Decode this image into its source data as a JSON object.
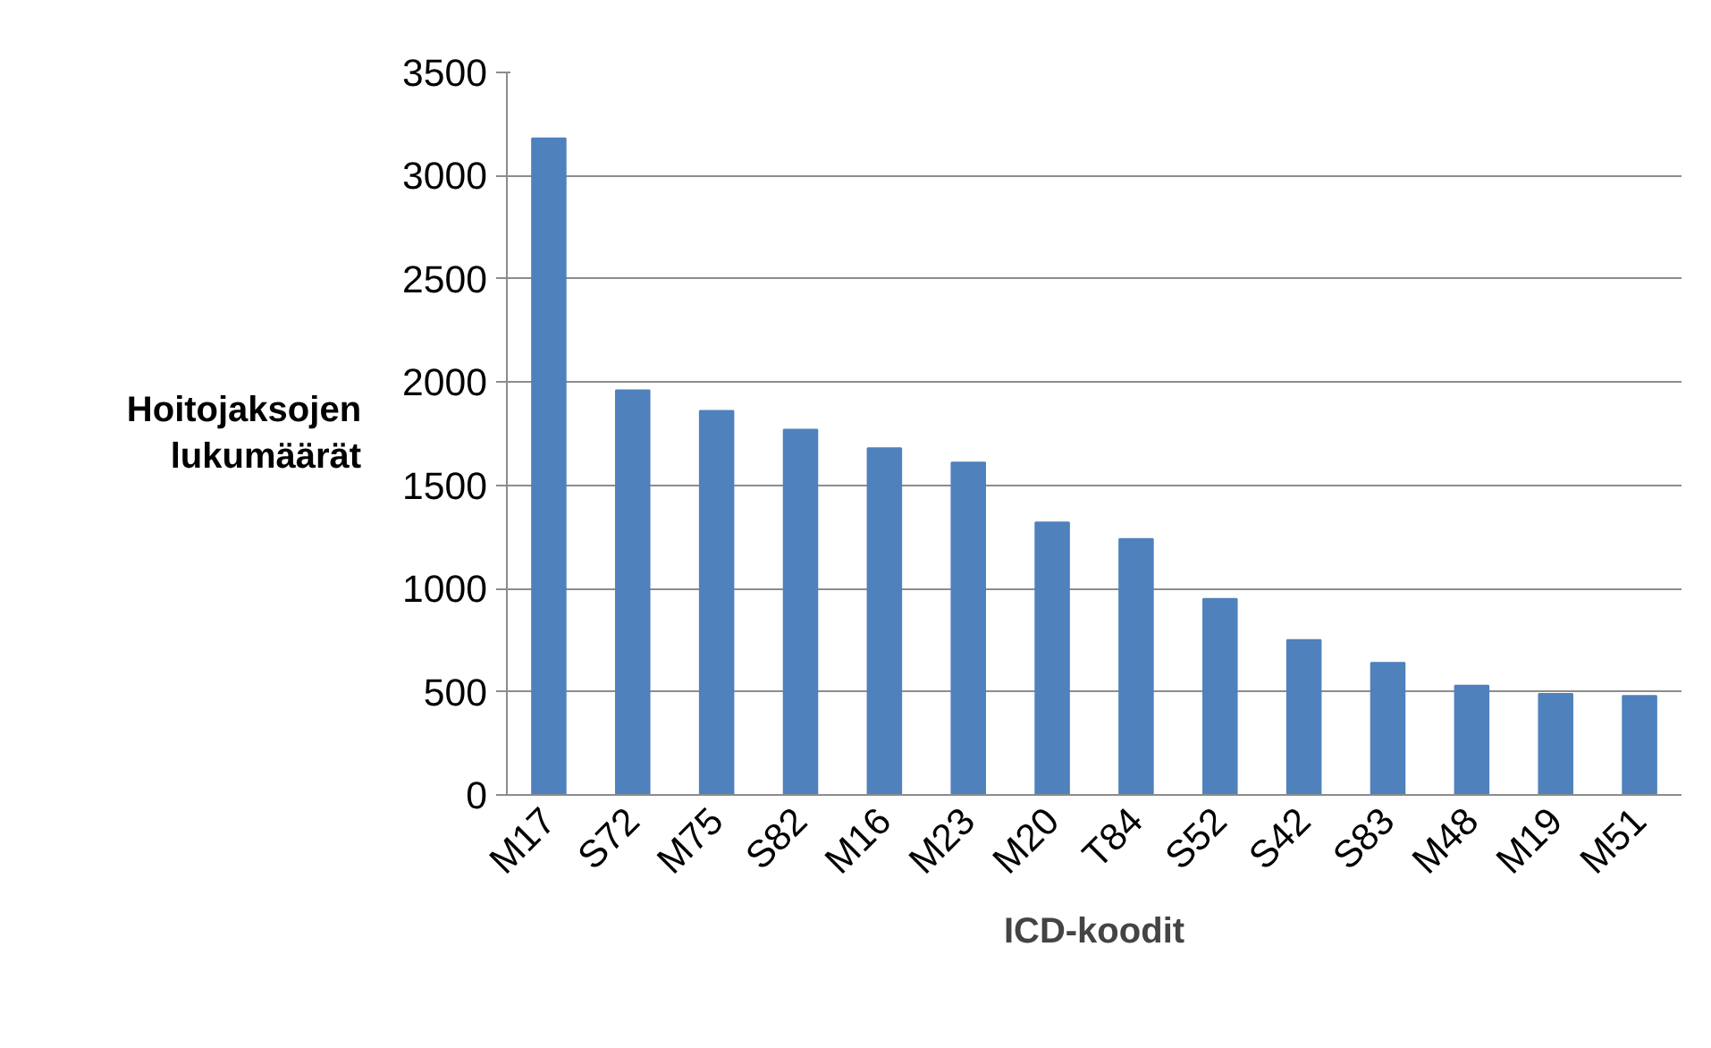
{
  "chart_data": {
    "type": "bar",
    "xlabel": "ICD-koodit",
    "ylabel": "Hoitojaksojen lukumäärät",
    "categories": [
      "M17",
      "S72",
      "M75",
      "S82",
      "M16",
      "M23",
      "M20",
      "T84",
      "S52",
      "S42",
      "S83",
      "M48",
      "M19",
      "M51"
    ],
    "values": [
      3180,
      1960,
      1860,
      1770,
      1680,
      1610,
      1320,
      1240,
      950,
      750,
      640,
      530,
      490,
      480
    ],
    "color": "#4f81bd",
    "ylim": [
      0,
      3500
    ],
    "yticks": [
      0,
      500,
      1000,
      1500,
      2000,
      2500,
      3000,
      3500
    ],
    "grid": "y"
  }
}
